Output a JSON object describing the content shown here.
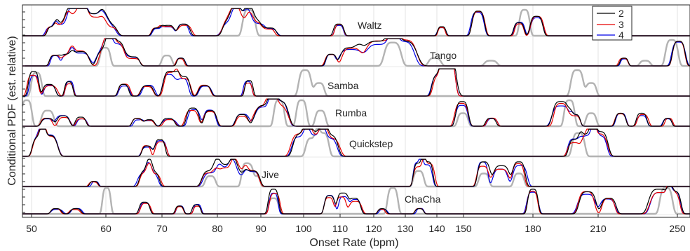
{
  "chart_data": {
    "type": "line",
    "xlabel": "Onset Rate (bpm)",
    "ylabel": "Conditional PDF (est. relative)",
    "x_tick_labels": [
      "50",
      "60",
      "70",
      "80",
      "90",
      "100",
      "110",
      "120",
      "130",
      "140",
      "150",
      "180",
      "210",
      "250"
    ],
    "grid": true,
    "legend": {
      "placement": "top-right",
      "entries": [
        "2",
        "3",
        "4"
      ]
    },
    "colors": {
      "2": "#000000",
      "3": "#e60000",
      "4": "#0000e6",
      "reference": "#b3b3b3"
    },
    "panels": [
      {
        "label": "Waltz"
      },
      {
        "label": "Tango"
      },
      {
        "label": "Samba"
      },
      {
        "label": "Rumba"
      },
      {
        "label": "Quickstep"
      },
      {
        "label": "Jive"
      },
      {
        "label": "ChaCha"
      }
    ],
    "series": [
      {
        "name": "2"
      },
      {
        "name": "3"
      },
      {
        "name": "4"
      }
    ]
  }
}
